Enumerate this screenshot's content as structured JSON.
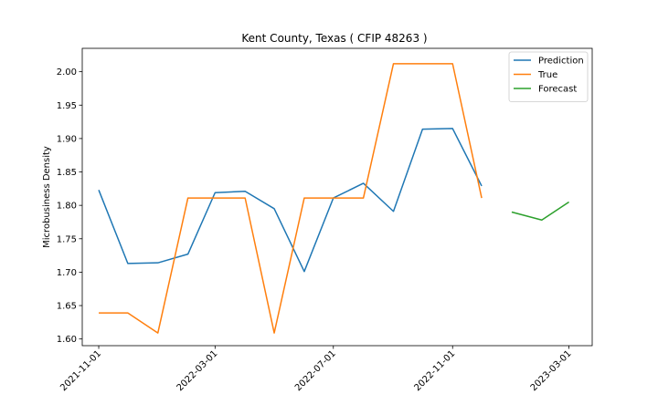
{
  "chart_data": {
    "type": "line",
    "title": "Kent County, Texas ( CFIP 48263 )",
    "xlabel": "",
    "ylabel": "Microbusiness Density",
    "ylim": [
      1.59,
      2.035
    ],
    "yticks": [
      1.6,
      1.65,
      1.7,
      1.75,
      1.8,
      1.85,
      1.9,
      1.95,
      2.0
    ],
    "ytick_labels": [
      "1.60",
      "1.65",
      "1.70",
      "1.75",
      "1.80",
      "1.85",
      "1.90",
      "1.95",
      "2.00"
    ],
    "xlim": [
      "2021-10-15",
      "2023-03-25"
    ],
    "xticks": [
      "2021-11-01",
      "2022-03-01",
      "2022-07-01",
      "2022-11-01",
      "2023-03-01"
    ],
    "grid": false,
    "legend_position": "top-right",
    "series": [
      {
        "name": "Prediction",
        "color": "#1f77b4",
        "x": [
          "2021-11-01",
          "2021-12-01",
          "2022-01-01",
          "2022-02-01",
          "2022-03-01",
          "2022-04-01",
          "2022-05-01",
          "2022-06-01",
          "2022-07-01",
          "2022-08-01",
          "2022-09-01",
          "2022-10-01",
          "2022-11-01",
          "2022-12-01"
        ],
        "values": [
          1.823,
          1.713,
          1.714,
          1.727,
          1.819,
          1.821,
          1.795,
          1.701,
          1.811,
          1.833,
          1.791,
          1.914,
          1.915,
          1.829
        ]
      },
      {
        "name": "True",
        "color": "#ff7f0e",
        "x": [
          "2021-11-01",
          "2021-12-01",
          "2022-01-01",
          "2022-02-01",
          "2022-03-01",
          "2022-04-01",
          "2022-05-01",
          "2022-06-01",
          "2022-07-01",
          "2022-08-01",
          "2022-09-01",
          "2022-10-01",
          "2022-11-01",
          "2022-12-01"
        ],
        "values": [
          1.639,
          1.639,
          1.609,
          1.811,
          1.811,
          1.811,
          1.609,
          1.811,
          1.811,
          1.811,
          2.012,
          2.012,
          2.012,
          1.811
        ]
      },
      {
        "name": "Forecast",
        "color": "#2ca02c",
        "x": [
          "2023-01-01",
          "2023-02-01",
          "2023-03-01"
        ],
        "values": [
          1.79,
          1.778,
          1.805
        ]
      }
    ]
  }
}
